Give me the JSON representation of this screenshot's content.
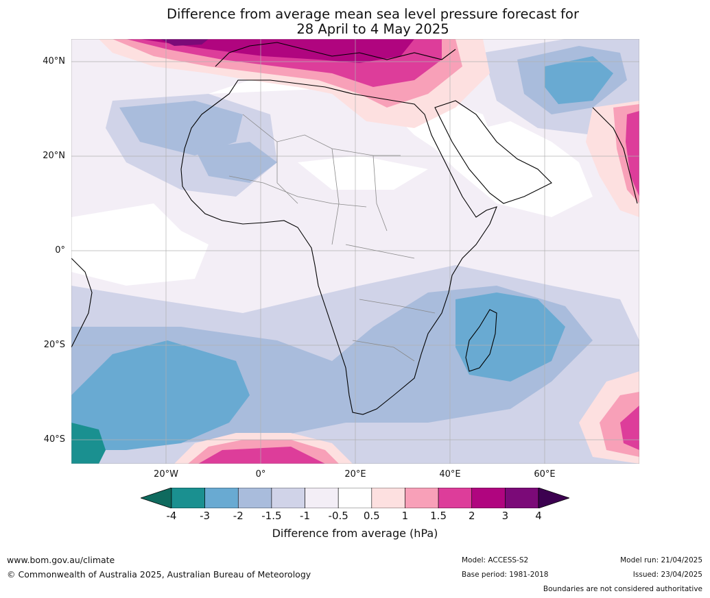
{
  "title_line1": "Difference from average mean sea level pressure forecast for",
  "title_line2": "28 April to 4 May 2025",
  "lat_labels": [
    "40°N",
    "20°N",
    "0°",
    "20°S",
    "40°S"
  ],
  "lon_labels": [
    "20°W",
    "0°",
    "20°E",
    "40°E",
    "60°E"
  ],
  "colorbar": {
    "ticks": [
      "-4",
      "-3",
      "-2",
      "-1.5",
      "-1",
      "-0.5",
      "0.5",
      "1",
      "1.5",
      "2",
      "3",
      "4"
    ],
    "colors": [
      "#0f6a5e",
      "#1a9090",
      "#69aad2",
      "#a9bcdc",
      "#d0d3e8",
      "#f3eef6",
      "#ffffff",
      "#fde0e0",
      "#f8a0b8",
      "#dd3d9a",
      "#b0057f",
      "#7b0a78",
      "#3c0150"
    ],
    "label": "Difference from average (hPa)"
  },
  "footer": {
    "url": "www.bom.gov.au/climate",
    "copyright": "© Commonwealth of Australia 2025, Australian Bureau of Meteorology",
    "model": "Model: ACCESS-S2",
    "base_period": "Base period: 1981-2018",
    "model_run": "Model run: 21/04/2025",
    "issued": "Issued: 23/04/2025",
    "disclaimer": "Boundaries are not considered authoritative"
  }
}
